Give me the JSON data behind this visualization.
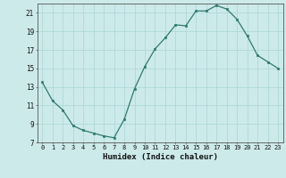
{
  "x": [
    0,
    1,
    2,
    3,
    4,
    5,
    6,
    7,
    8,
    9,
    10,
    11,
    12,
    13,
    14,
    15,
    16,
    17,
    18,
    19,
    20,
    21,
    22,
    23
  ],
  "y": [
    13.5,
    11.5,
    10.5,
    8.8,
    8.3,
    8.0,
    7.7,
    7.5,
    9.5,
    12.8,
    15.2,
    17.1,
    18.3,
    19.7,
    19.6,
    21.2,
    21.2,
    21.8,
    21.4,
    20.3,
    18.5,
    16.4,
    15.7,
    15.0
  ],
  "xlabel": "Humidex (Indice chaleur)",
  "line_color": "#2d7a6e",
  "marker_color": "#2d7a6e",
  "bg_color": "#cdeaea",
  "grid_color": "#b0d8d8",
  "xlim": [
    -0.5,
    23.5
  ],
  "ylim": [
    7,
    22
  ],
  "yticks": [
    7,
    9,
    11,
    13,
    15,
    17,
    19,
    21
  ],
  "xticks": [
    0,
    1,
    2,
    3,
    4,
    5,
    6,
    7,
    8,
    9,
    10,
    11,
    12,
    13,
    14,
    15,
    16,
    17,
    18,
    19,
    20,
    21,
    22,
    23
  ],
  "xtick_labels": [
    "0",
    "1",
    "2",
    "3",
    "4",
    "5",
    "6",
    "7",
    "8",
    "9",
    "10",
    "11",
    "12",
    "13",
    "14",
    "15",
    "16",
    "17",
    "18",
    "19",
    "20",
    "21",
    "22",
    "23"
  ]
}
